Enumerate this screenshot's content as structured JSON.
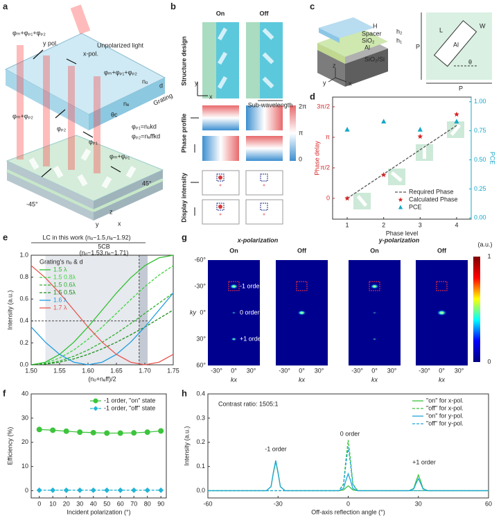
{
  "panels": [
    "a",
    "b",
    "c",
    "d",
    "e",
    "f",
    "g",
    "h"
  ],
  "panel_a": {
    "labels": [
      "Unpolarized light",
      "y pol.",
      "x-pol.",
      "φₘ+φₚ₁+φₚ₂",
      "φₘ+φₚ₁+φₚ₂",
      "nₒ",
      "d",
      "Grating",
      "φₘ+φₚ₂",
      "φₚ₂",
      "φₚ₁",
      "φₘ+φₚ₁",
      "φₚ₁=nₒkd",
      "φₚ₂=nₑffkd",
      "45°",
      "-45°",
      "z",
      "y",
      "x",
      "nₑ",
      "θc"
    ]
  },
  "panel_b": {
    "columns": [
      "On",
      "Off"
    ],
    "rows": [
      "Structure design",
      "Phase profile",
      "Display intensity"
    ],
    "note": "Sub-wavelength",
    "colorbar": [
      "2π",
      "π",
      "0"
    ],
    "axes": [
      "y",
      "x"
    ]
  },
  "panel_c": {
    "labels": [
      "H",
      "Spacer",
      "h₂",
      "SiO₂",
      "h₁",
      "Al",
      "SiO₂/Si",
      "z",
      "y",
      "x",
      "L",
      "W",
      "Al",
      "θ",
      "P",
      "P"
    ]
  },
  "panel_g": {
    "titles": [
      "x-polarization",
      "y-polarization"
    ],
    "states": [
      "On",
      "Off",
      "On",
      "Off"
    ],
    "unit": "(a.u.)",
    "colorbar": [
      "1",
      "0"
    ],
    "yticks": [
      "-60°",
      "-30°",
      "0°",
      "30°",
      "60°"
    ],
    "xticks": [
      "-30°",
      "0°",
      "30°"
    ],
    "ylabel": "ky",
    "xlabel": "kx",
    "orders": [
      "-1 order",
      "0 order",
      "+1 order"
    ]
  },
  "chart_data": [
    {
      "type": "line",
      "xlabel": "Phase level",
      "ylabel": "Phase delay",
      "y2label": "PCE",
      "ylabel_color": "#d62728",
      "y2label_color": "#17a8c9",
      "x": [
        1,
        2,
        3,
        4
      ],
      "xlim": [
        0.6,
        4.4
      ],
      "xticks": [
        1,
        2,
        3,
        4
      ],
      "ylim": [
        -1.07,
        5.21
      ],
      "yticks": [
        0,
        {
          "value": 1.5708,
          "label": "π/2"
        },
        {
          "value": 3.1416,
          "label": "π"
        },
        {
          "value": 4.7124,
          "label": "3π/2"
        }
      ],
      "y2lim": [
        -0.01,
        1.04
      ],
      "y2ticks": [
        {
          "value": 0,
          "label": "0.00"
        },
        {
          "value": 0.25,
          "label": "0.25"
        },
        {
          "value": 0.5,
          "label": "0.50"
        },
        {
          "value": 0.75,
          "label": "0.75"
        },
        {
          "value": 1,
          "label": "1.00"
        }
      ],
      "series": [
        {
          "name": "Required Phase",
          "color": "#555555",
          "line_style": "dashed",
          "marker": "none",
          "values": [
            0,
            1.25,
            2.5,
            3.75
          ]
        },
        {
          "name": "Calculated Phase",
          "color": "#d62728",
          "line_style": "none",
          "marker": "star",
          "values": [
            0,
            1.21,
            3.18,
            4.32
          ]
        },
        {
          "name": "PCE",
          "color": "#17a8c9",
          "line_style": "none",
          "marker": "triangle",
          "axis": "y2",
          "values": [
            0.76,
            0.83,
            0.76,
            0.83
          ]
        }
      ],
      "legend": "lower right"
    },
    {
      "type": "line",
      "xlabel": "(nₒ+nₑff)/2",
      "ylabel": "Intensity (a.u.)",
      "x": [
        1.5,
        1.525,
        1.55,
        1.575,
        1.6,
        1.625,
        1.65,
        1.675,
        1.7,
        1.725,
        1.75
      ],
      "xlim": [
        1.5,
        1.75
      ],
      "xticks": [
        {
          "value": 1.5,
          "label": "1.50"
        },
        {
          "value": 1.55,
          "label": "1.55"
        },
        {
          "value": 1.6,
          "label": "1.60"
        },
        {
          "value": 1.65,
          "label": "1.65"
        },
        {
          "value": 1.7,
          "label": "1.70"
        },
        {
          "value": 1.75,
          "label": "1.75"
        }
      ],
      "ylim": [
        0,
        1
      ],
      "yticks": [
        {
          "value": 0,
          "label": "0.0"
        },
        {
          "value": 0.2,
          "label": "0.2"
        },
        {
          "value": 0.4,
          "label": "0.4"
        },
        {
          "value": 0.6,
          "label": "0.6"
        },
        {
          "value": 0.8,
          "label": "0.8"
        },
        {
          "value": 1,
          "label": "1.0"
        }
      ],
      "legend": "upper left",
      "legend_title": "Grating's nₒ & d",
      "annotations": [
        "LC in this work (nₒ~1.5,nₑ~1.92)",
        "5CB",
        "(nₒ~1.53,nₑ~1.71)"
      ],
      "series": [
        {
          "name": "1.5  λ",
          "color": "#2dbf2d",
          "line_style": "solid",
          "marker": "none",
          "values": [
            0,
            0.024,
            0.095,
            0.206,
            0.345,
            0.5,
            0.655,
            0.794,
            0.905,
            0.976,
            1
          ]
        },
        {
          "name": "1.5  0.8λ",
          "color": "#3fd63f",
          "line_style": "dashed",
          "marker": "none",
          "values": [
            0,
            0.016,
            0.062,
            0.135,
            0.232,
            0.345,
            0.469,
            0.594,
            0.713,
            0.819,
            0.905
          ]
        },
        {
          "name": "1.5  0.6λ",
          "color": "#2fb02f",
          "line_style": "dashed",
          "marker": "none",
          "values": [
            0,
            0.009,
            0.035,
            0.078,
            0.135,
            0.206,
            0.287,
            0.376,
            0.469,
            0.563,
            0.655
          ]
        },
        {
          "name": "1.5  0.5λ",
          "color": "#1e8c1e",
          "line_style": "dashed",
          "marker": "none",
          "values": [
            0,
            0.006,
            0.024,
            0.054,
            0.095,
            0.146,
            0.206,
            0.273,
            0.345,
            0.422,
            0.5
          ]
        },
        {
          "name": "1.6  λ",
          "color": "#1f9be0",
          "line_style": "solid",
          "marker": "none",
          "values": [
            0.345,
            0.206,
            0.095,
            0.024,
            0,
            0.024,
            0.095,
            0.206,
            0.345,
            0.5,
            0.655
          ]
        },
        {
          "name": "1.7  λ",
          "color": "#e8544e",
          "line_style": "solid",
          "marker": "none",
          "values": [
            0.905,
            0.794,
            0.655,
            0.5,
            0.345,
            0.206,
            0.095,
            0.024,
            0,
            0.024,
            0.095
          ]
        }
      ]
    },
    {
      "type": "line",
      "xlabel": "Incident polarization (°)",
      "ylabel": "Efficiency (%)",
      "x": [
        0,
        10,
        20,
        30,
        40,
        50,
        60,
        70,
        80,
        90
      ],
      "xlim": [
        -6,
        94
      ],
      "xticks": [
        0,
        10,
        20,
        30,
        40,
        50,
        60,
        70,
        80,
        90
      ],
      "ylim": [
        -3,
        40
      ],
      "yticks": [
        0,
        10,
        20,
        30,
        40
      ],
      "legend": "upper right",
      "series": [
        {
          "name": "-1 order, \"on\" state",
          "color": "#3cc43c",
          "line_style": "solid",
          "marker": "circle",
          "values": [
            25.3,
            25,
            24.6,
            24.2,
            24,
            23.8,
            23.8,
            23.9,
            24.2,
            24.7
          ]
        },
        {
          "name": "-1 order, \"off\" state",
          "color": "#21b5d6",
          "line_style": "dashed",
          "marker": "diamond",
          "values": [
            0.2,
            0.2,
            0.2,
            0.2,
            0.2,
            0.2,
            0.2,
            0.2,
            0.2,
            0.2
          ]
        }
      ]
    },
    {
      "type": "line",
      "xlabel": "Off-axis reflection angle (°)",
      "ylabel": "Intensity (a.u.)",
      "x": [
        -60,
        -35,
        -33,
        -32,
        -31,
        -30,
        -29,
        -27,
        -4,
        -2,
        -1,
        0,
        1,
        2,
        4,
        26,
        28,
        29,
        30,
        31,
        32,
        34,
        60
      ],
      "xlim": [
        -60,
        60
      ],
      "xticks": [
        -60,
        -30,
        0,
        30,
        60
      ],
      "ylim": [
        -0.03,
        0.4
      ],
      "yticks": [
        {
          "value": 0,
          "label": "0.0"
        },
        {
          "value": 0.1,
          "label": "0.1"
        },
        {
          "value": 0.2,
          "label": "0.2"
        },
        {
          "value": 0.3,
          "label": "0.3"
        },
        {
          "value": 0.4,
          "label": "0.4"
        }
      ],
      "legend": "upper right",
      "annotations": [
        "Contrast ratio: 1505:1",
        "-1 order",
        "0 order",
        "+1 order"
      ],
      "series": [
        {
          "name": "\"on\" for x-pol.",
          "color": "#3cc43c",
          "line_style": "solid",
          "marker": "none",
          "values": [
            0,
            0,
            0.016,
            0.073,
            0.12,
            0.073,
            0.016,
            0,
            0,
            0.003,
            0.012,
            0.02,
            0.012,
            0.003,
            0,
            0,
            0.009,
            0.039,
            0.065,
            0.039,
            0.009,
            0,
            0
          ]
        },
        {
          "name": "\"off\" for x-pol.",
          "color": "#3cc43c",
          "line_style": "dashed",
          "marker": "none",
          "values": [
            0,
            0,
            0,
            0,
            0,
            0,
            0,
            0,
            0,
            0.028,
            0.127,
            0.21,
            0.127,
            0.028,
            0,
            0,
            0,
            0,
            0,
            0,
            0,
            0,
            0
          ]
        },
        {
          "name": "\"on\" for y-pol.",
          "color": "#1fa5d8",
          "line_style": "solid",
          "marker": "none",
          "values": [
            0,
            0,
            0.017,
            0.076,
            0.125,
            0.076,
            0.017,
            0,
            0,
            0.009,
            0.042,
            0.07,
            0.042,
            0.009,
            0,
            0,
            0.007,
            0.03,
            0.05,
            0.03,
            0.007,
            0,
            0
          ]
        },
        {
          "name": "\"off\" for y-pol.",
          "color": "#1fa5d8",
          "line_style": "dashed",
          "marker": "none",
          "values": [
            0,
            0,
            0,
            0,
            0,
            0,
            0,
            0,
            0,
            0.024,
            0.109,
            0.18,
            0.109,
            0.024,
            0,
            0,
            0,
            0,
            0,
            0,
            0,
            0,
            0
          ]
        }
      ]
    }
  ]
}
